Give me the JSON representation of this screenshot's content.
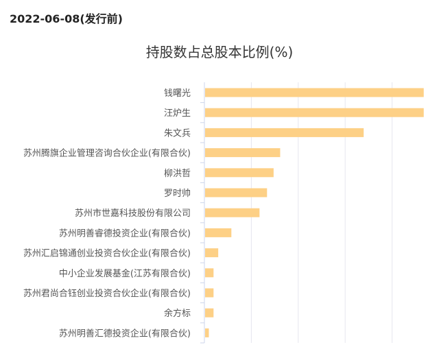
{
  "header": {
    "date": "2022-06-08(发行前)"
  },
  "chart_data": {
    "type": "bar",
    "orientation": "horizontal",
    "title": "持股数占总股本比例(%)",
    "categories": [
      "钱曙光",
      "汪炉生",
      "朱文兵",
      "苏州腾旗企业管理咨询合伙企业(有限合伙)",
      "柳洪哲",
      "罗时帅",
      "苏州市世嘉科技股份有限公司",
      "苏州明善睿德投资企业(有限合伙)",
      "苏州汇启锦通创业投资合伙企业(有限合伙)",
      "中小企业发展基金(江苏有限合伙)",
      "苏州君尚合钰创业投资合伙企业(有限合伙)",
      "余方标",
      "苏州明善汇德投资企业(有限合伙)"
    ],
    "values": [
      23.3,
      23.3,
      16.9,
      8.0,
      7.3,
      6.6,
      5.8,
      2.8,
      1.4,
      0.9,
      0.9,
      0.9,
      0.4
    ],
    "xlim": [
      0,
      25
    ],
    "grid": true,
    "bar_color": "#fdd086"
  }
}
